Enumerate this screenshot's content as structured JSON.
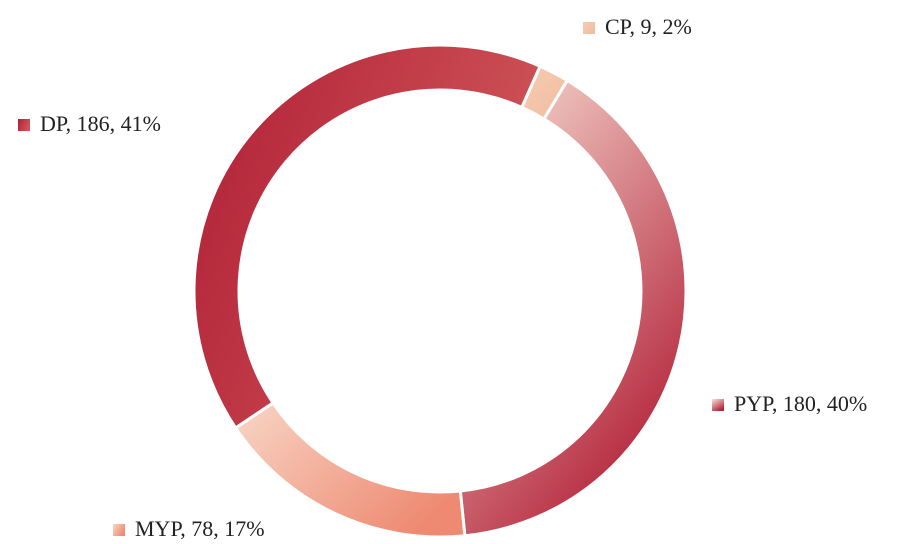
{
  "chart_data": {
    "type": "donut",
    "categories": [
      "CP",
      "PYP",
      "MYP",
      "DP"
    ],
    "values": [
      9,
      180,
      78,
      186
    ],
    "labels": [
      "CP, 9, 2%",
      "PYP, 180, 40%",
      "MYP, 78, 17%",
      "DP, 186, 41%"
    ],
    "colors": [
      [
        "#f6cdb4",
        "#f1bb9e"
      ],
      [
        "#fae4d8",
        "#b3243a"
      ],
      [
        "#f8d6c6",
        "#ee8a72"
      ],
      [
        "#b01f36",
        "#cf5558"
      ]
    ]
  }
}
